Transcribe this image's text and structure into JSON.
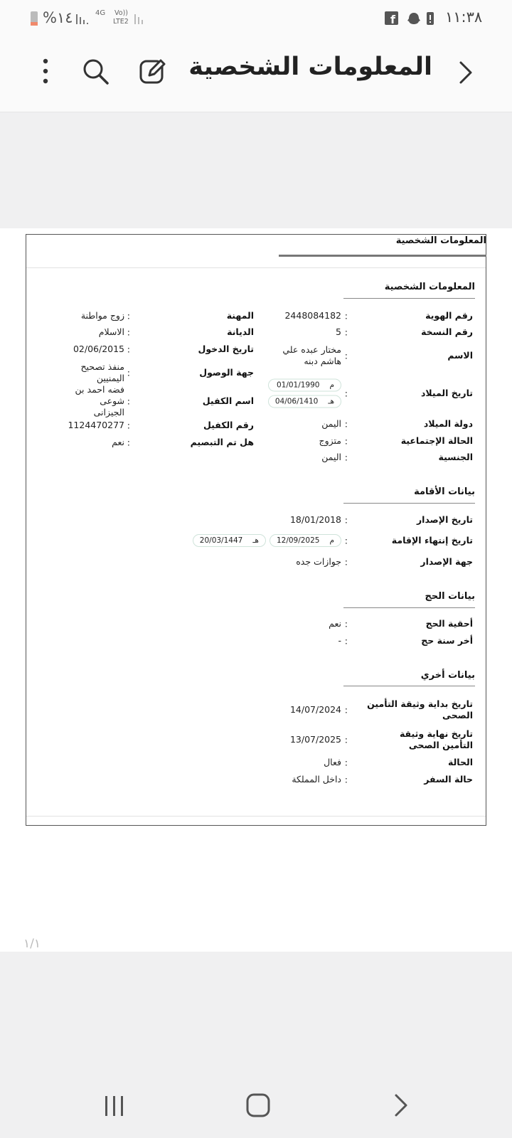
{
  "status_bar": {
    "time": "١١:٣٨",
    "battery": "%١٤",
    "network": "4G",
    "volte": "Vo))",
    "lte": "LTE2"
  },
  "app_bar": {
    "title": "المعلومات الشخصية"
  },
  "document": {
    "title": "المعلومات الشخصية",
    "separator": ":",
    "sections": [
      {
        "title": "المعلومات الشخصية",
        "rows": [
          {
            "label": "رقم الهوية",
            "value": "2448084182"
          },
          {
            "label": "رقم النسخة",
            "value": "5"
          },
          {
            "label": "الاسم",
            "value": "مختار عبده علي هاشم دبنه"
          },
          {
            "label": "تاريخ الميلاد",
            "value": [
              {
                "calendar": "م",
                "date": "01/01/1990"
              },
              {
                "calendar": "هـ",
                "date": "04/06/1410"
              }
            ]
          },
          {
            "label": "دولة الميلاد",
            "value": "اليمن"
          },
          {
            "label": "الحالة الإجتماعية",
            "value": "متزوج"
          },
          {
            "label": "الجنسية",
            "value": "اليمن"
          }
        ],
        "side_rows": [
          {
            "label": "المهنة",
            "value": "زوج مواطنة"
          },
          {
            "label": "الديانة",
            "value": "الاسلام"
          },
          {
            "label": "تاريخ الدخول",
            "value": "02/06/2015"
          },
          {
            "label": "جهة الوصول",
            "value": "منفذ تصحيح اليمنيين"
          },
          {
            "label": "اسم الكفيل",
            "value": "فضه احمد بن شوعى الجيزانى"
          },
          {
            "label": "رقم الكفيل",
            "value": "1124470277"
          },
          {
            "label": "هل تم التبصيم",
            "value": "نعم"
          }
        ]
      },
      {
        "title": "بيانات الأقامة",
        "rows": [
          {
            "label": "تاريخ الإصدار",
            "value": "18/01/2018"
          },
          {
            "label": "تاريخ إنتهاء الإقامة",
            "value": [
              {
                "calendar": "م",
                "date": "12/09/2025"
              },
              {
                "calendar": "هـ",
                "date": "20/03/1447"
              }
            ]
          },
          {
            "label": "جهة الإصدار",
            "value": "جوازات جده"
          }
        ]
      },
      {
        "title": "بيانات الحج",
        "rows": [
          {
            "label": "أحقية الحج",
            "value": "نعم"
          },
          {
            "label": "أخر سنة حج",
            "value": "-"
          }
        ]
      },
      {
        "title": "بيانات أخري",
        "rows": [
          {
            "label": "تاريخ بداية وثيقة التأمين الصحى",
            "value": "14/07/2024"
          },
          {
            "label": "تاريخ نهاية وثيقة التأمين الصحى",
            "value": "13/07/2025"
          },
          {
            "label": "الحالة",
            "value": "فعال"
          },
          {
            "label": "حالة السفر",
            "value": "داخل المملكة"
          }
        ]
      }
    ]
  },
  "page_indicator": "١/١"
}
